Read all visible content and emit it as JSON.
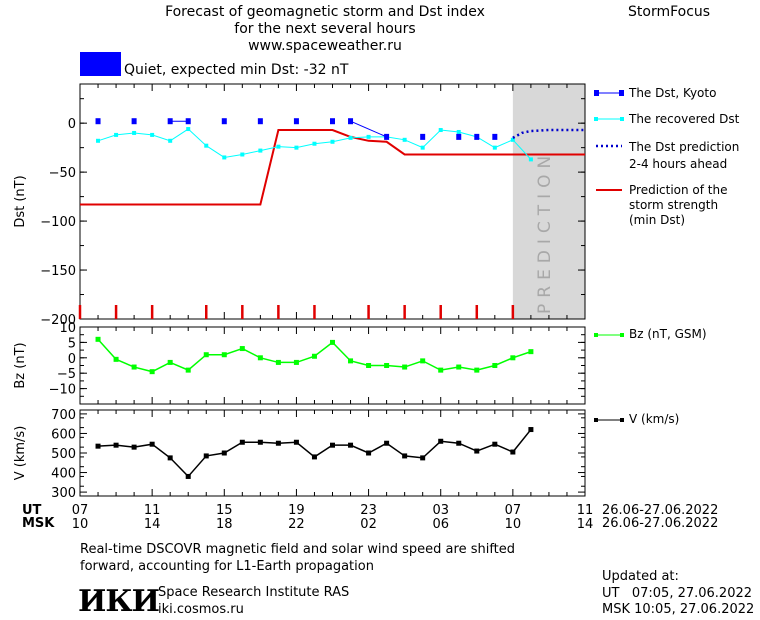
{
  "header": {
    "title_line1": "Forecast of geomagnetic storm and Dst index",
    "title_line2": "for the next several hours",
    "url": "www.spaceweather.ru",
    "brand": "StormFocus"
  },
  "status": {
    "text": "Quiet, expected min Dst: -32 nT",
    "color": "#0000ff"
  },
  "prediction_label": "PREDICTION",
  "legend": {
    "dst_kyoto": "The Dst, Kyoto",
    "dst_recovered": "The recovered Dst",
    "dst_prediction_1": "The Dst prediction",
    "dst_prediction_2": "2-4 hours ahead",
    "strength_1": "Prediction of the",
    "strength_2": "storm strength",
    "strength_3": "(min Dst)",
    "bz": "Bz (nT, GSM)",
    "v": "V (km/s)"
  },
  "time_axis": {
    "ut_label": "UT",
    "msk_label": "MSK",
    "ut_ticks": [
      "07",
      "11",
      "15",
      "19",
      "23",
      "03",
      "07",
      "11"
    ],
    "msk_ticks": [
      "10",
      "14",
      "18",
      "22",
      "02",
      "06",
      "10",
      "14"
    ],
    "ut_range": "26.06-27.06.2022",
    "msk_range": "26.06-27.06.2022"
  },
  "footer": {
    "note_line1": "Real-time DSCOVR magnetic field and solar wind speed are shifted",
    "note_line2": "forward, accounting for L1-Earth propagation",
    "logo": "ИКИ",
    "institute": "Space Research Institute RAS",
    "institute_url": "iki.cosmos.ru",
    "updated_label": "Updated at:",
    "updated_ut": "UT   07:05, 27.06.2022",
    "updated_msk": "MSK 10:05, 27.06.2022"
  },
  "chart_data": [
    {
      "type": "line",
      "ylabel": "Dst (nT)",
      "xlim": [
        7,
        35
      ],
      "ylim": [
        -200,
        40
      ],
      "yticks": [
        0,
        -50,
        -100,
        -150,
        -200
      ],
      "prediction_start": 31,
      "colors": {
        "kyoto": "#0000ff",
        "recovered": "#00ffff",
        "prediction": "#0000cc",
        "strength": "#e00000",
        "shade": "#d8d8d8"
      },
      "series": [
        {
          "name": "The Dst, Kyoto",
          "x": [
            8,
            10,
            12,
            13,
            15,
            17,
            19,
            21,
            22,
            24,
            26,
            28,
            29,
            30
          ],
          "y": [
            2,
            2,
            2,
            2,
            2,
            2,
            2,
            2,
            2,
            -14,
            -14,
            -14,
            -14,
            -14
          ]
        },
        {
          "name": "The recovered Dst",
          "x": [
            8,
            9,
            10,
            11,
            12,
            13,
            14,
            15,
            16,
            17,
            18,
            19,
            20,
            21,
            22,
            23,
            24,
            25,
            26,
            27,
            28,
            29,
            30,
            31,
            32
          ],
          "y": [
            -18,
            -12,
            -10,
            -12,
            -18,
            -6,
            -23,
            -35,
            -32,
            -28,
            -24,
            -25,
            -21,
            -19,
            -15,
            -14,
            -14,
            -17,
            -25,
            -7,
            -9,
            -14,
            -25,
            -17,
            -37
          ]
        },
        {
          "name": "The Dst prediction 2-4 hours ahead",
          "x": [
            31,
            31.5,
            32,
            33,
            34,
            35
          ],
          "y": [
            -15,
            -10,
            -8,
            -7,
            -7,
            -7
          ]
        },
        {
          "name": "Prediction of the storm strength (min Dst)",
          "x": [
            7,
            17,
            18,
            21,
            22,
            23,
            24,
            25,
            35
          ],
          "y": [
            -83,
            -83,
            -7,
            -7,
            -14,
            -18,
            -19,
            -32,
            -32
          ]
        }
      ],
      "storm_markers": {
        "color": "#e00000",
        "x": [
          7,
          9,
          11,
          14,
          16,
          18,
          20,
          23,
          25,
          27,
          29,
          31
        ]
      }
    },
    {
      "type": "line",
      "ylabel": "Bz (nT)",
      "ylim": [
        -15,
        10
      ],
      "yticks": [
        10,
        5,
        0,
        -5,
        -10
      ],
      "color": "#00ff00",
      "series": [
        {
          "name": "Bz (nT, GSM)",
          "x": [
            8,
            9,
            10,
            11,
            12,
            13,
            14,
            15,
            16,
            17,
            18,
            19,
            20,
            21,
            22,
            23,
            24,
            25,
            26,
            27,
            28,
            29,
            30,
            31,
            32
          ],
          "y": [
            6,
            -0.5,
            -3,
            -4.5,
            -1.5,
            -4,
            1,
            1,
            3,
            0,
            -1.5,
            -1.5,
            0.5,
            5,
            -1,
            -2.5,
            -2.5,
            -3,
            -1,
            -4,
            -3,
            -4,
            -2.5,
            0,
            2
          ]
        }
      ]
    },
    {
      "type": "line",
      "ylabel": "V (km/s)",
      "ylim": [
        280,
        720
      ],
      "yticks": [
        700,
        600,
        500,
        400,
        300
      ],
      "color": "#000000",
      "series": [
        {
          "name": "V (km/s)",
          "x": [
            8,
            9,
            10,
            11,
            12,
            13,
            14,
            15,
            16,
            17,
            18,
            19,
            20,
            21,
            22,
            23,
            24,
            25,
            26,
            27,
            28,
            29,
            30,
            31,
            32
          ],
          "y": [
            535,
            540,
            530,
            545,
            475,
            380,
            485,
            500,
            555,
            555,
            550,
            555,
            480,
            540,
            540,
            500,
            550,
            485,
            475,
            560,
            550,
            510,
            545,
            505,
            620
          ]
        }
      ]
    }
  ]
}
